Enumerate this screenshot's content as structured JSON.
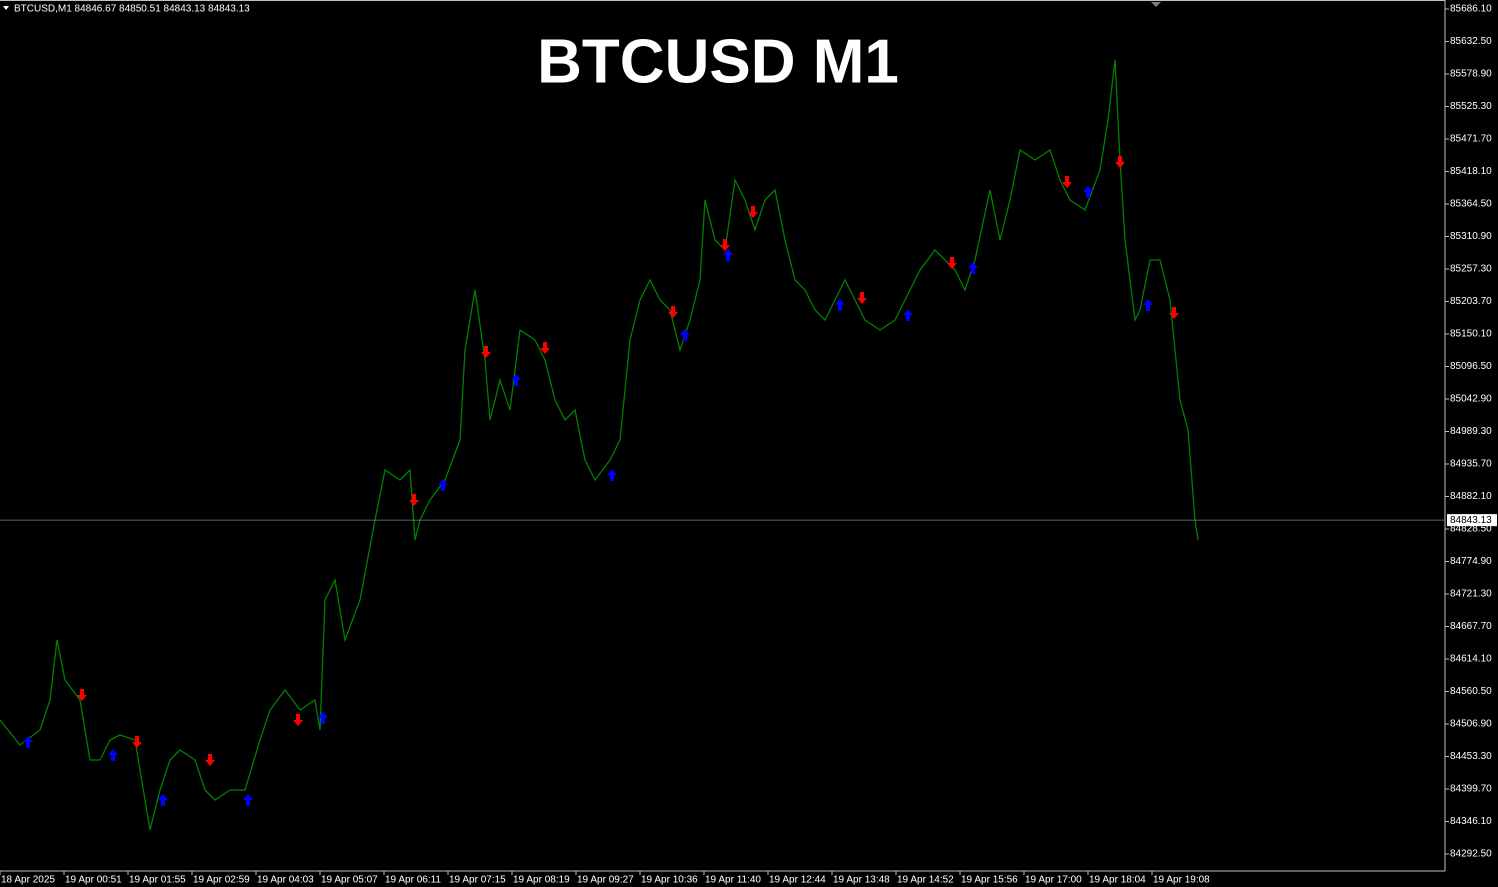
{
  "chart_data": {
    "type": "line",
    "header": "BTCUSD,M1  84846.67 84850.51 84843.13 84843.13",
    "title": "BTCUSD M1",
    "xlim": [
      0,
      1445
    ],
    "ylim": [
      84264.5,
      85700.9
    ],
    "xticks": [
      {
        "value": 0,
        "label": "18 Apr 2025"
      },
      {
        "value": 64,
        "label": "19 Apr 00:51"
      },
      {
        "value": 128,
        "label": "19 Apr 01:55"
      },
      {
        "value": 192,
        "label": "19 Apr 02:59"
      },
      {
        "value": 256,
        "label": "19 Apr 04:03"
      },
      {
        "value": 320,
        "label": "19 Apr 05:07"
      },
      {
        "value": 384,
        "label": "19 Apr 06:11"
      },
      {
        "value": 448,
        "label": "19 Apr 07:15"
      },
      {
        "value": 512,
        "label": "19 Apr 08:19"
      },
      {
        "value": 576,
        "label": "19 Apr 09:27"
      },
      {
        "value": 640,
        "label": "19 Apr 10:36"
      },
      {
        "value": 704,
        "label": "19 Apr 11:40"
      },
      {
        "value": 768,
        "label": "19 Apr 12:44"
      },
      {
        "value": 832,
        "label": "19 Apr 13:48"
      },
      {
        "value": 896,
        "label": "19 Apr 14:52"
      },
      {
        "value": 960,
        "label": "19 Apr 15:56"
      },
      {
        "value": 1024,
        "label": "19 Apr 17:00"
      },
      {
        "value": 1088,
        "label": "19 Apr 18:04"
      },
      {
        "value": 1152,
        "label": "19 Apr 19:08"
      }
    ],
    "yticks": [
      {
        "value": 85686.1,
        "label": "85686.10"
      },
      {
        "value": 85632.5,
        "label": "85632.50"
      },
      {
        "value": 85578.9,
        "label": "85578.90"
      },
      {
        "value": 85525.3,
        "label": "85525.30"
      },
      {
        "value": 85471.7,
        "label": "85471.70"
      },
      {
        "value": 85418.1,
        "label": "85418.10"
      },
      {
        "value": 85364.5,
        "label": "85364.50"
      },
      {
        "value": 85310.9,
        "label": "85310.90"
      },
      {
        "value": 85257.3,
        "label": "85257.30"
      },
      {
        "value": 85203.7,
        "label": "85203.70"
      },
      {
        "value": 85150.1,
        "label": "85150.10"
      },
      {
        "value": 85096.5,
        "label": "85096.50"
      },
      {
        "value": 85042.9,
        "label": "85042.90"
      },
      {
        "value": 84989.3,
        "label": "84989.30"
      },
      {
        "value": 84935.7,
        "label": "84935.70"
      },
      {
        "value": 84882.1,
        "label": "84882.10"
      },
      {
        "value": 84828.5,
        "label": "84828.50"
      },
      {
        "value": 84774.9,
        "label": "84774.90"
      },
      {
        "value": 84721.3,
        "label": "84721.30"
      },
      {
        "value": 84667.7,
        "label": "84667.70"
      },
      {
        "value": 84614.1,
        "label": "84614.10"
      },
      {
        "value": 84560.5,
        "label": "84560.50"
      },
      {
        "value": 84506.9,
        "label": "84506.90"
      },
      {
        "value": 84453.3,
        "label": "84453.30"
      },
      {
        "value": 84399.7,
        "label": "84399.70"
      },
      {
        "value": 84346.1,
        "label": "84346.10"
      },
      {
        "value": 84292.5,
        "label": "84292.50"
      }
    ],
    "last_price": 84843.13,
    "series": [
      {
        "color": "#008000",
        "x": [
          0,
          20,
          40,
          50,
          57,
          65,
          80,
          90,
          100,
          110,
          120,
          135,
          145,
          150,
          160,
          170,
          180,
          195,
          205,
          215,
          230,
          245,
          260,
          270,
          285,
          300,
          315,
          320,
          325,
          335,
          345,
          360,
          375,
          385,
          400,
          410,
          415,
          420,
          430,
          445,
          460,
          465,
          475,
          485,
          490,
          500,
          510,
          520,
          535,
          545,
          555,
          565,
          575,
          585,
          595,
          610,
          620,
          630,
          640,
          650,
          660,
          670,
          680,
          690,
          700,
          705,
          715,
          725,
          735,
          745,
          755,
          765,
          775,
          785,
          795,
          805,
          815,
          825,
          835,
          845,
          855,
          865,
          880,
          895,
          910,
          920,
          935,
          945,
          955,
          965,
          975,
          990,
          1000,
          1010,
          1020,
          1035,
          1050,
          1060,
          1070,
          1085,
          1100,
          1108,
          1115,
          1120,
          1125,
          1135,
          1140,
          1150,
          1160,
          1170,
          1180,
          1188,
          1195,
          1198
        ],
        "values": [
          84513.5,
          84472.3,
          84497.0,
          84546.5,
          84645.5,
          84579.5,
          84546.5,
          84447.6,
          84447.6,
          84480.5,
          84488.8,
          84480.5,
          84381.6,
          84332.1,
          84398.1,
          84447.6,
          84464.0,
          84447.6,
          84398.1,
          84381.6,
          84398.1,
          84398.1,
          84480.5,
          84530.0,
          84563.0,
          84530.0,
          84546.5,
          84497.0,
          84711.4,
          84744.4,
          84645.5,
          84711.4,
          84843.4,
          84925.8,
          84909.3,
          84925.8,
          84810.4,
          84843.4,
          84876.3,
          84909.3,
          84975.3,
          85123.7,
          85222.7,
          85107.2,
          85008.3,
          85074.2,
          85024.8,
          85156.7,
          85140.2,
          85107.2,
          85041.3,
          85008.3,
          85024.8,
          84942.3,
          84909.3,
          84942.3,
          84975.3,
          85140.2,
          85206.2,
          85239.2,
          85206.2,
          85189.7,
          85123.7,
          85173.2,
          85239.2,
          85371.1,
          85305.1,
          85288.6,
          85404.1,
          85371.1,
          85321.6,
          85371.1,
          85387.6,
          85305.1,
          85239.2,
          85222.7,
          85189.7,
          85173.2,
          85206.2,
          85239.2,
          85206.2,
          85173.2,
          85156.7,
          85173.2,
          85222.7,
          85255.7,
          85288.6,
          85272.2,
          85255.7,
          85222.7,
          85272.2,
          85387.6,
          85305.1,
          85371.1,
          85453.6,
          85437.1,
          85453.6,
          85404.1,
          85371.1,
          85354.6,
          85420.6,
          85503.0,
          85602.0,
          85437.1,
          85305.1,
          85173.2,
          85189.7,
          85272.2,
          85272.2,
          85206.2,
          85041.3,
          84991.8,
          84843.4,
          84810.4
        ]
      }
    ],
    "signals_up": {
      "color": "#0000ff",
      "x": [
        28,
        113,
        163,
        248,
        323,
        443,
        516,
        612,
        685,
        728,
        840,
        908,
        973,
        1088,
        1148
      ],
      "values": [
        84477.2,
        84455.8,
        84381.6,
        84381.6,
        84516.8,
        84901.1,
        85074.2,
        84917.6,
        85148.5,
        85280.4,
        85197.9,
        85181.4,
        85259.0,
        85384.3,
        85197.9
      ]
    },
    "signals_down": {
      "color": "#ff0000",
      "x": [
        82,
        137,
        210,
        298,
        414,
        486,
        545,
        673,
        725,
        753,
        862,
        952,
        1067,
        1120,
        1174
      ],
      "values": [
        84554.7,
        84477.2,
        84447.6,
        84513.5,
        84876.3,
        85120.4,
        85127.0,
        85186.4,
        85296.9,
        85351.3,
        85209.5,
        85267.2,
        85400.8,
        85433.8,
        85184.7
      ]
    }
  }
}
